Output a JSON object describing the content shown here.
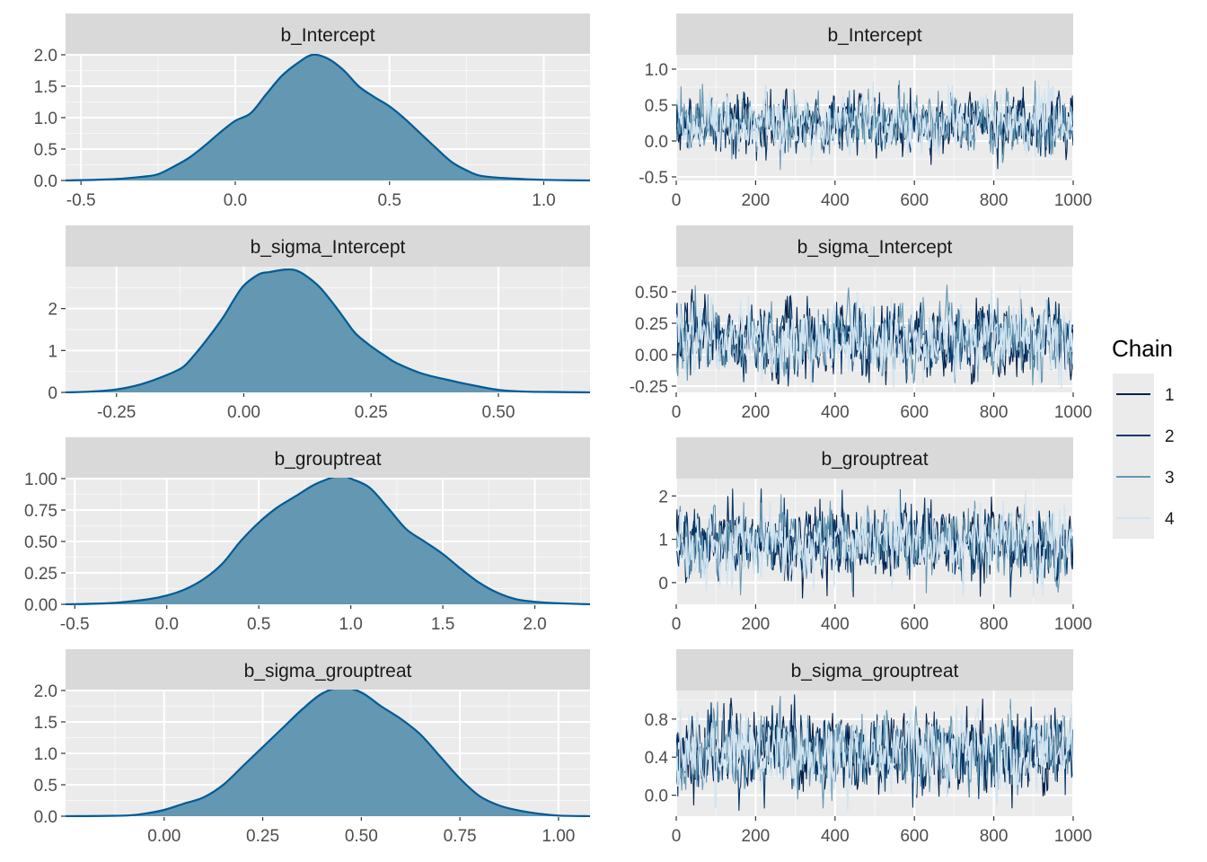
{
  "chart_data": [
    {
      "type": "area",
      "title": "b_Intercept",
      "xlim": [
        -0.55,
        1.15
      ],
      "ylim": [
        0,
        2.0
      ],
      "xticks": [
        -0.5,
        0.0,
        0.5,
        1.0
      ],
      "xtick_labels": [
        "-0.5",
        "0.0",
        "0.5",
        "1.0"
      ],
      "yticks": [
        0.0,
        0.5,
        1.0,
        1.5,
        2.0
      ],
      "ytick_labels": [
        "0.0",
        "0.5",
        "1.0",
        "1.5",
        "2.0"
      ],
      "x": [
        -0.55,
        -0.4,
        -0.3,
        -0.25,
        -0.2,
        -0.15,
        -0.1,
        -0.05,
        0.0,
        0.05,
        0.1,
        0.15,
        0.2,
        0.25,
        0.3,
        0.35,
        0.4,
        0.45,
        0.5,
        0.55,
        0.6,
        0.65,
        0.7,
        0.75,
        0.8,
        0.9,
        1.0,
        1.15
      ],
      "y": [
        0.0,
        0.02,
        0.06,
        0.1,
        0.22,
        0.36,
        0.55,
        0.76,
        0.95,
        1.07,
        1.37,
        1.66,
        1.86,
        2.0,
        1.94,
        1.76,
        1.5,
        1.33,
        1.18,
        0.98,
        0.75,
        0.52,
        0.3,
        0.16,
        0.07,
        0.03,
        0.01,
        0.0
      ]
    },
    {
      "type": "line",
      "title": "b_Intercept",
      "xlim": [
        0,
        1000
      ],
      "ylim": [
        -0.55,
        1.2
      ],
      "xticks": [
        0,
        200,
        400,
        600,
        800,
        1000
      ],
      "xtick_labels": [
        "0",
        "200",
        "400",
        "600",
        "800",
        "1000"
      ],
      "yticks": [
        -0.5,
        0.0,
        0.5,
        1.0
      ],
      "ytick_labels": [
        "-0.5",
        "0.0",
        "0.5",
        "1.0"
      ],
      "trace_mean": 0.25,
      "trace_sd": 0.2
    },
    {
      "type": "area",
      "title": "b_sigma_Intercept",
      "xlim": [
        -0.35,
        0.68
      ],
      "ylim": [
        0,
        3.0
      ],
      "xticks": [
        -0.25,
        0.0,
        0.25,
        0.5
      ],
      "xtick_labels": [
        "-0.25",
        "0.00",
        "0.25",
        "0.50"
      ],
      "yticks": [
        0,
        1,
        2
      ],
      "ytick_labels": [
        "0",
        "1",
        "2"
      ],
      "x": [
        -0.35,
        -0.3,
        -0.25,
        -0.2,
        -0.15,
        -0.12,
        -0.1,
        -0.07,
        -0.04,
        -0.02,
        0.0,
        0.03,
        0.05,
        0.08,
        0.1,
        0.12,
        0.15,
        0.18,
        0.2,
        0.22,
        0.25,
        0.28,
        0.3,
        0.35,
        0.4,
        0.45,
        0.5,
        0.55,
        0.6,
        0.68
      ],
      "y": [
        0.0,
        0.02,
        0.07,
        0.2,
        0.42,
        0.6,
        0.85,
        1.3,
        1.8,
        2.2,
        2.55,
        2.82,
        2.87,
        2.93,
        2.92,
        2.8,
        2.5,
        2.05,
        1.72,
        1.4,
        1.1,
        0.85,
        0.7,
        0.45,
        0.3,
        0.17,
        0.06,
        0.02,
        0.01,
        0.0
      ]
    },
    {
      "type": "line",
      "title": "b_sigma_Intercept",
      "xlim": [
        0,
        1000
      ],
      "ylim": [
        -0.3,
        0.7
      ],
      "xticks": [
        0,
        200,
        400,
        600,
        800,
        1000
      ],
      "xtick_labels": [
        "0",
        "200",
        "400",
        "600",
        "800",
        "1000"
      ],
      "yticks": [
        -0.25,
        0.0,
        0.25,
        0.5
      ],
      "ytick_labels": [
        "-0.25",
        "0.00",
        "0.25",
        "0.50"
      ],
      "trace_mean": 0.12,
      "trace_sd": 0.14
    },
    {
      "type": "area",
      "title": "b_grouptreat",
      "xlim": [
        -0.55,
        2.3
      ],
      "ylim": [
        0,
        1.0
      ],
      "xticks": [
        -0.5,
        0.0,
        0.5,
        1.0,
        1.5,
        2.0
      ],
      "xtick_labels": [
        "-0.5",
        "0.0",
        "0.5",
        "1.0",
        "1.5",
        "2.0"
      ],
      "yticks": [
        0.0,
        0.25,
        0.5,
        0.75,
        1.0
      ],
      "ytick_labels": [
        "0.00",
        "0.25",
        "0.50",
        "0.75",
        "1.00"
      ],
      "x": [
        -0.55,
        -0.3,
        -0.1,
        0.0,
        0.1,
        0.2,
        0.3,
        0.4,
        0.5,
        0.6,
        0.7,
        0.8,
        0.9,
        0.95,
        1.0,
        1.1,
        1.2,
        1.3,
        1.4,
        1.5,
        1.6,
        1.7,
        1.8,
        1.9,
        2.0,
        2.1,
        2.3
      ],
      "y": [
        0.0,
        0.01,
        0.04,
        0.07,
        0.12,
        0.2,
        0.32,
        0.5,
        0.65,
        0.77,
        0.86,
        0.95,
        1.01,
        1.03,
        1.0,
        0.93,
        0.77,
        0.6,
        0.5,
        0.4,
        0.28,
        0.17,
        0.09,
        0.04,
        0.02,
        0.01,
        0.0
      ]
    },
    {
      "type": "line",
      "title": "b_grouptreat",
      "xlim": [
        0,
        1000
      ],
      "ylim": [
        -0.5,
        2.4
      ],
      "xticks": [
        0,
        200,
        400,
        600,
        800,
        1000
      ],
      "xtick_labels": [
        "0",
        "200",
        "400",
        "600",
        "800",
        "1000"
      ],
      "yticks": [
        0,
        1,
        2
      ],
      "ytick_labels": [
        "0",
        "1",
        "2"
      ],
      "trace_mean": 0.92,
      "trace_sd": 0.4
    },
    {
      "type": "area",
      "title": "b_sigma_grouptreat",
      "xlim": [
        -0.25,
        1.08
      ],
      "ylim": [
        0,
        2.0
      ],
      "xticks": [
        0.0,
        0.25,
        0.5,
        0.75,
        1.0
      ],
      "xtick_labels": [
        "0.00",
        "0.25",
        "0.50",
        "0.75",
        "1.00"
      ],
      "yticks": [
        0.0,
        0.5,
        1.0,
        1.5,
        2.0
      ],
      "ytick_labels": [
        "0.0",
        "0.5",
        "1.0",
        "1.5",
        "2.0"
      ],
      "x": [
        -0.25,
        -0.1,
        -0.05,
        0.0,
        0.05,
        0.1,
        0.15,
        0.2,
        0.25,
        0.3,
        0.35,
        0.4,
        0.45,
        0.5,
        0.55,
        0.6,
        0.65,
        0.7,
        0.75,
        0.8,
        0.85,
        0.9,
        0.95,
        1.0,
        1.08
      ],
      "y": [
        0.0,
        0.01,
        0.04,
        0.1,
        0.2,
        0.3,
        0.5,
        0.8,
        1.1,
        1.4,
        1.7,
        1.95,
        2.05,
        1.97,
        1.75,
        1.55,
        1.3,
        0.95,
        0.6,
        0.32,
        0.17,
        0.09,
        0.04,
        0.01,
        0.0
      ]
    },
    {
      "type": "line",
      "title": "b_sigma_grouptreat",
      "xlim": [
        0,
        1000
      ],
      "ylim": [
        -0.22,
        1.1
      ],
      "xticks": [
        0,
        200,
        400,
        600,
        800,
        1000
      ],
      "xtick_labels": [
        "0",
        "200",
        "400",
        "600",
        "800",
        "1000"
      ],
      "yticks": [
        0.0,
        0.4,
        0.8
      ],
      "ytick_labels": [
        "0.0",
        "0.4",
        "0.8"
      ],
      "trace_mean": 0.46,
      "trace_sd": 0.2
    }
  ],
  "legend": {
    "title": "Chain",
    "entries": [
      "1",
      "2",
      "3",
      "4"
    ],
    "colors": [
      "#011f4b",
      "#03396c",
      "#6497b1",
      "#d1e4f1"
    ]
  },
  "colors": {
    "panel_bg": "#ebebeb",
    "strip_bg": "#d9d9d9",
    "density_fill": "#6497b1",
    "density_line": "#005b96",
    "grid": "#ffffff"
  }
}
